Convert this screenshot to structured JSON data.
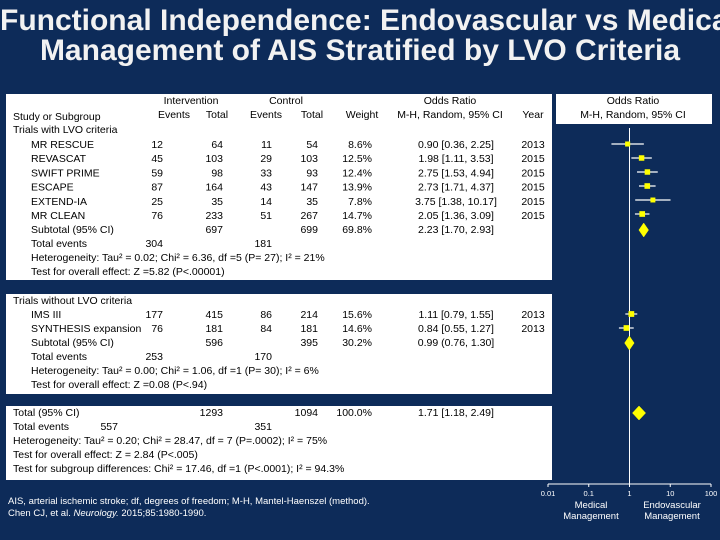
{
  "title": {
    "line1": "Functional Independence: Endovascular vs Medical",
    "line2": "Management of AIS Stratified by LVO Criteria"
  },
  "headers": {
    "intervention": "Intervention",
    "control": "Control",
    "events": "Events",
    "total": "Total",
    "events_c": "Events",
    "total_c": "Total",
    "weight": "Weight",
    "or_title": "Odds Ratio",
    "or_method": "M-H, Random, 95% CI",
    "year": "Year",
    "plot_title": "Odds Ratio",
    "plot_method": "M-H, Random, 95% CI",
    "study": "Study or Subgroup"
  },
  "group1": {
    "label": "Trials with LVO criteria",
    "studies": [
      {
        "name": "MR RESCUE",
        "ie": "12",
        "it": "64",
        "ce": "11",
        "ct": "54",
        "w": "8.6%",
        "ci": "0.90 [0.36, 2.25]",
        "year": "2013"
      },
      {
        "name": "REVASCAT",
        "ie": "45",
        "it": "103",
        "ce": "29",
        "ct": "103",
        "w": "12.5%",
        "ci": "1.98 [1.11, 3.53]",
        "year": "2015"
      },
      {
        "name": "SWIFT PRIME",
        "ie": "59",
        "it": "98",
        "ce": "33",
        "ct": "93",
        "w": "12.4%",
        "ci": "2.75 [1.53, 4.94]",
        "year": "2015"
      },
      {
        "name": "ESCAPE",
        "ie": "87",
        "it": "164",
        "ce": "43",
        "ct": "147",
        "w": "13.9%",
        "ci": "2.73 [1.71, 4.37]",
        "year": "2015"
      },
      {
        "name": "EXTEND-IA",
        "ie": "25",
        "it": "35",
        "ce": "14",
        "ct": "35",
        "w": "7.8%",
        "ci": "3.75 [1.38, 10.17]",
        "year": "2015"
      },
      {
        "name": "MR CLEAN",
        "ie": "76",
        "it": "233",
        "ce": "51",
        "ct": "267",
        "w": "14.7%",
        "ci": "2.05 [1.36, 3.09]",
        "year": "2015"
      }
    ],
    "subtotal": {
      "name": "Subtotal (95% CI)",
      "it": "697",
      "ct": "699",
      "w": "69.8%",
      "ci": "2.23 [1.70, 2.93]"
    },
    "total_events": {
      "name": "Total events",
      "ie": "304",
      "ce": "181"
    },
    "heterogeneity": "Heterogeneity: Tau² = 0.02; Chi² = 6.36, df =5 (P= 27); I² = 21%",
    "overall": "Test for overall effect: Z =5.82 (P<.00001)"
  },
  "group2": {
    "label": "Trials without LVO criteria",
    "studies": [
      {
        "name": "IMS III",
        "ie": "177",
        "it": "415",
        "ce": "86",
        "ct": "214",
        "w": "15.6%",
        "ci": "1.11 [0.79, 1.55]",
        "year": "2013"
      },
      {
        "name": "SYNTHESIS expansion",
        "ie": "76",
        "it": "181",
        "ce": "84",
        "ct": "181",
        "w": "14.6%",
        "ci": "0.84 [0.55, 1.27]",
        "year": "2013"
      }
    ],
    "subtotal": {
      "name": "Subtotal (95% CI)",
      "it": "596",
      "ct": "395",
      "w": "30.2%",
      "ci": "0.99 (0.76, 1.30]"
    },
    "total_events": {
      "name": "Total events",
      "ie": "253",
      "ce": "170"
    },
    "heterogeneity": "Heterogeneity: Tau² = 0.00; Chi² = 1.06, df =1 (P= 30); I² = 6%",
    "overall": "Test for overall effect: Z =0.08 (P<.94)"
  },
  "total": {
    "name": "Total (95% CI)",
    "it": "1293",
    "ct": "1094",
    "w": "100.0%",
    "ci": "1.71 [1.18, 2.49]",
    "events_label": "Total events",
    "ie": "557",
    "ce": "351",
    "heterogeneity": "Heterogeneity: Tau² = 0.20; Chi² = 28.47, df = 7 (P=.0002); I² = 75%",
    "overall": "Test for overall effect: Z = 2.84 (P<.005)",
    "subgroup": "Test for subgroup differences: Chi² = 17.46, df =1 (P<.0001); I² = 94.3%"
  },
  "footnote": {
    "line1": "AIS, arterial ischemic stroke; df, degrees of freedom; M-H, Mantel-Haenszel (method).",
    "line2_pre": "Chen CJ, et al. ",
    "line2_journal": "Neurology.",
    "line2_post": " 2015;85:1980-1990."
  },
  "chart_data": {
    "type": "forest",
    "scale": "log",
    "xlim": [
      0.01,
      100
    ],
    "ticks": [
      0.01,
      0.1,
      1,
      10,
      100
    ],
    "tick_labels": [
      "0.01",
      "0.1",
      "1",
      "10",
      "100"
    ],
    "left_label": [
      "Medical",
      "Management"
    ],
    "right_label": [
      "Endovascular",
      "Management"
    ],
    "studies": [
      {
        "name": "MR RESCUE",
        "or": 0.9,
        "lo": 0.36,
        "hi": 2.25,
        "weight": 8.6
      },
      {
        "name": "REVASCAT",
        "or": 1.98,
        "lo": 1.11,
        "hi": 3.53,
        "weight": 12.5
      },
      {
        "name": "SWIFT PRIME",
        "or": 2.75,
        "lo": 1.53,
        "hi": 4.94,
        "weight": 12.4
      },
      {
        "name": "ESCAPE",
        "or": 2.73,
        "lo": 1.71,
        "hi": 4.37,
        "weight": 13.9
      },
      {
        "name": "EXTEND-IA",
        "or": 3.75,
        "lo": 1.38,
        "hi": 10.17,
        "weight": 7.8
      },
      {
        "name": "MR CLEAN",
        "or": 2.05,
        "lo": 1.36,
        "hi": 3.09,
        "weight": 14.7
      },
      {
        "name": "IMS III",
        "or": 1.11,
        "lo": 0.79,
        "hi": 1.55,
        "weight": 15.6
      },
      {
        "name": "SYNTHESIS expansion",
        "or": 0.84,
        "lo": 0.55,
        "hi": 1.27,
        "weight": 14.6
      }
    ],
    "diamonds": [
      {
        "name": "Subtotal LVO",
        "or": 2.23,
        "lo": 1.7,
        "hi": 2.93
      },
      {
        "name": "Subtotal without LVO",
        "or": 0.99,
        "lo": 0.76,
        "hi": 1.3
      },
      {
        "name": "Total",
        "or": 1.71,
        "lo": 1.18,
        "hi": 2.49
      }
    ],
    "colors": {
      "marker": "#ffff00",
      "line": "#ffffff",
      "diamond": "#ffff00"
    }
  }
}
